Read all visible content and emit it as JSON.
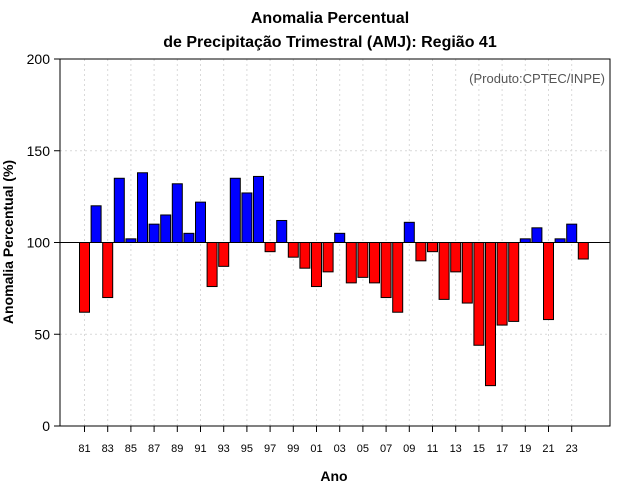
{
  "chart_data": {
    "type": "bar",
    "title_line1": "Anomalia Percentual",
    "title_line2": "de Precipitação Trimestral (AMJ): Região 41",
    "xlabel": "Ano",
    "ylabel": "Anomalia Percentual (%)",
    "credit": "(Produto:CPTEC/INPE)",
    "baseline": 100,
    "ylim": [
      0,
      200
    ],
    "yticks": [
      "0",
      "50",
      "100",
      "150",
      "200"
    ],
    "ytick_values": [
      0,
      50,
      100,
      150,
      200
    ],
    "categories": [
      "81",
      "82",
      "83",
      "84",
      "85",
      "86",
      "87",
      "88",
      "89",
      "90",
      "91",
      "92",
      "93",
      "94",
      "95",
      "96",
      "97",
      "98",
      "99",
      "00",
      "01",
      "02",
      "03",
      "04",
      "05",
      "06",
      "07",
      "08",
      "09",
      "10",
      "11",
      "12",
      "13",
      "14",
      "15",
      "16",
      "17",
      "18",
      "19",
      "20",
      "21",
      "22",
      "23",
      "24"
    ],
    "xtick_labels": [
      "81",
      "83",
      "85",
      "87",
      "89",
      "91",
      "93",
      "95",
      "97",
      "99",
      "01",
      "03",
      "05",
      "07",
      "09",
      "11",
      "13",
      "15",
      "17",
      "19",
      "21",
      "23"
    ],
    "values": [
      62,
      120,
      70,
      135,
      102,
      138,
      110,
      115,
      132,
      105,
      122,
      76,
      87,
      135,
      127,
      136,
      95,
      112,
      92,
      86,
      76,
      84,
      105,
      78,
      81,
      78,
      70,
      62,
      111,
      90,
      95,
      69,
      84,
      67,
      44,
      22,
      55,
      57,
      102,
      108,
      58,
      102,
      110,
      91
    ],
    "colors": {
      "above": "#0000ff",
      "below": "#ff0000",
      "stroke": "#000000",
      "grid": "#d9d9d9"
    }
  }
}
